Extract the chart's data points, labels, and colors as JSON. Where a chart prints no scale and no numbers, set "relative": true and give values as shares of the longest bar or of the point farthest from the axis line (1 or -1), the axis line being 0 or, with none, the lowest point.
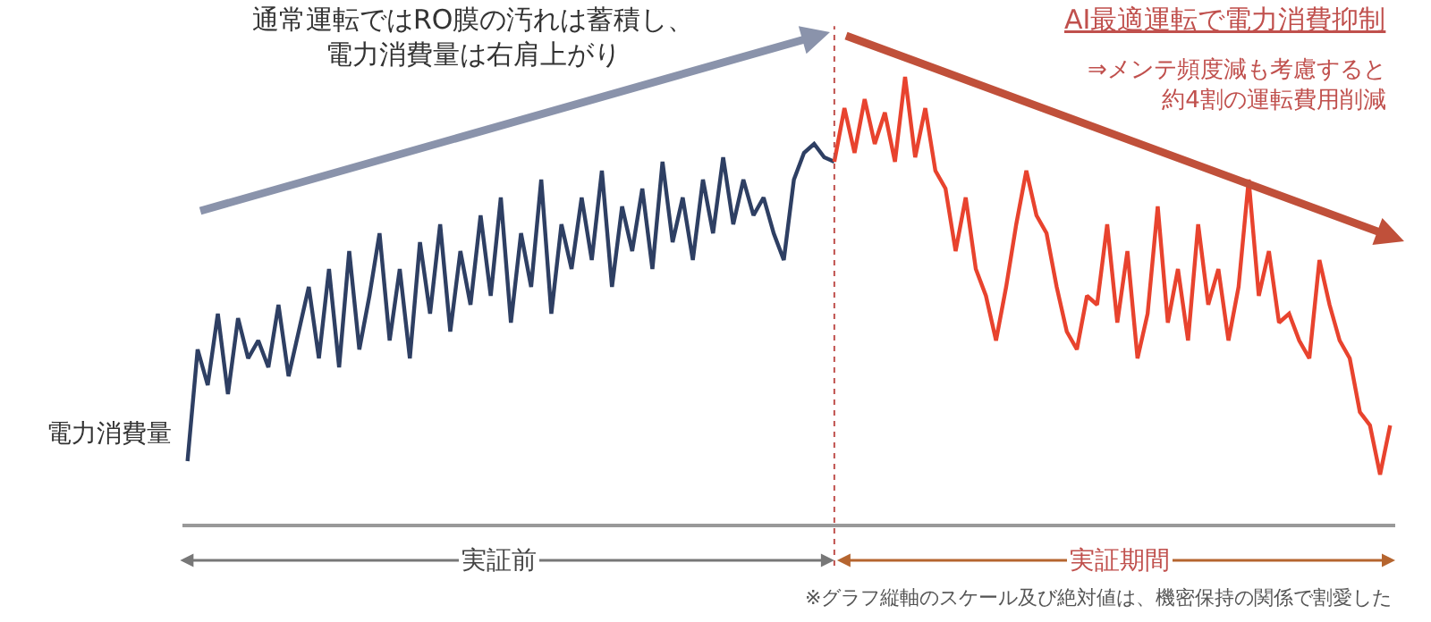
{
  "chart_data": {
    "type": "line",
    "relative": true,
    "ylabel": "電力消費量",
    "categories": [
      null,
      null,
      null,
      null,
      null,
      null,
      null,
      null,
      null,
      null,
      null,
      null,
      null,
      null,
      null,
      null,
      null,
      null,
      null,
      null,
      null,
      null,
      null,
      null,
      null,
      null,
      null,
      null,
      null,
      null,
      null,
      null,
      null,
      null,
      null,
      null,
      null,
      null,
      null,
      null,
      null,
      null,
      null,
      null,
      null,
      null,
      null,
      null,
      null,
      null,
      null,
      null,
      null,
      null,
      null,
      null,
      null,
      null,
      null,
      null,
      null,
      null,
      null,
      null,
      null,
      null,
      null,
      null,
      null,
      null,
      null,
      null,
      null,
      null,
      null,
      null,
      null,
      null,
      null,
      null,
      null,
      null,
      null,
      null,
      null,
      null,
      null,
      null,
      null,
      null,
      null,
      null,
      null,
      null,
      null,
      null,
      null,
      null,
      null,
      null,
      null,
      null,
      null,
      null,
      null,
      null,
      null,
      null,
      null,
      null,
      null,
      null,
      null,
      null,
      null,
      null,
      null,
      null,
      null,
      null
    ],
    "series": [
      {
        "color": "#2e3f63",
        "values": [
          0.14,
          0.39,
          0.31,
          0.47,
          0.29,
          0.46,
          0.37,
          0.41,
          0.35,
          0.49,
          0.33,
          0.43,
          0.53,
          0.37,
          0.57,
          0.35,
          0.61,
          0.39,
          0.51,
          0.65,
          0.41,
          0.57,
          0.37,
          0.63,
          0.47,
          0.67,
          0.43,
          0.61,
          0.49,
          0.69,
          0.51,
          0.73,
          0.45,
          0.65,
          0.53,
          0.77,
          0.47,
          0.67,
          0.57,
          0.73,
          0.59,
          0.79,
          0.53,
          0.71,
          0.61,
          0.75,
          0.57,
          0.81,
          0.63,
          0.73,
          0.59,
          0.77,
          0.65,
          0.82,
          0.67,
          0.77,
          0.69,
          0.73,
          0.65,
          0.59,
          0.77,
          0.83,
          0.85,
          0.82,
          0.81,
          null,
          null,
          null,
          null,
          null,
          null,
          null,
          null,
          null,
          null,
          null,
          null,
          null,
          null,
          null,
          null,
          null,
          null,
          null,
          null,
          null,
          null,
          null,
          null,
          null,
          null,
          null,
          null,
          null,
          null,
          null,
          null,
          null,
          null,
          null,
          null,
          null,
          null,
          null,
          null,
          null,
          null,
          null,
          null,
          null,
          null,
          null,
          null,
          null,
          null,
          null,
          null,
          null,
          null,
          null
        ]
      },
      {
        "color": "#e8432e",
        "values": [
          null,
          null,
          null,
          null,
          null,
          null,
          null,
          null,
          null,
          null,
          null,
          null,
          null,
          null,
          null,
          null,
          null,
          null,
          null,
          null,
          null,
          null,
          null,
          null,
          null,
          null,
          null,
          null,
          null,
          null,
          null,
          null,
          null,
          null,
          null,
          null,
          null,
          null,
          null,
          null,
          null,
          null,
          null,
          null,
          null,
          null,
          null,
          null,
          null,
          null,
          null,
          null,
          null,
          null,
          null,
          null,
          null,
          null,
          null,
          null,
          null,
          null,
          null,
          null,
          0.81,
          0.93,
          0.83,
          0.95,
          0.85,
          0.92,
          0.81,
          1.0,
          0.82,
          0.93,
          0.79,
          0.75,
          0.61,
          0.73,
          0.57,
          0.51,
          0.41,
          0.53,
          0.67,
          0.79,
          0.69,
          0.65,
          0.53,
          0.43,
          0.39,
          0.51,
          0.49,
          0.67,
          0.45,
          0.61,
          0.37,
          0.47,
          0.71,
          0.45,
          0.57,
          0.41,
          0.67,
          0.49,
          0.57,
          0.41,
          0.53,
          0.77,
          0.51,
          0.61,
          0.45,
          0.47,
          0.41,
          0.37,
          0.59,
          0.49,
          0.41,
          0.37,
          0.25,
          0.22,
          0.11,
          0.22
        ]
      }
    ],
    "ref_lines": [
      {
        "axis": "x",
        "color": "#c0504d",
        "line_style": "dotted"
      }
    ],
    "annotations": [
      "通常運転ではRO膜の汚れは蓄積し、電力消費量は右肩上がり",
      "AI最適運転で電力消費抑制",
      "⇒メンテ頻度減も考慮すると約4割の運転費用削減",
      "実証前",
      "実証期間",
      "※グラフ縦軸のスケール及び絶対値は、機密保持の関係で割愛した"
    ],
    "legend": false,
    "marker": "none",
    "line_style": "solid"
  }
}
